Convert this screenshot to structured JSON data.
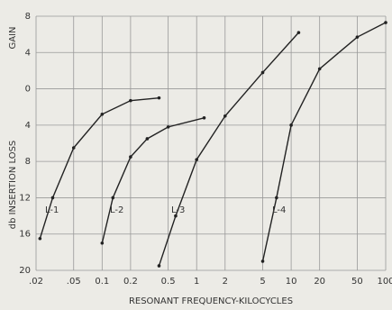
{
  "chart_data": {
    "type": "line",
    "y_title_top": "GAIN",
    "y_title_bottom": "db INSERTION LOSS",
    "x_title": "RESONANT FREQUENCY-KILOCYCLES",
    "log_x": true,
    "grid": true,
    "color": "#222222",
    "xlim": [
      0.02,
      100
    ],
    "ylim": [
      -20,
      8
    ],
    "xticks": [
      {
        "value": 0.02,
        "label": ".02"
      },
      {
        "value": 0.05,
        "label": ".05"
      },
      {
        "value": 0.1,
        "label": "0.1"
      },
      {
        "value": 0.2,
        "label": "0.2"
      },
      {
        "value": 0.5,
        "label": "0.5"
      },
      1,
      2,
      5,
      10,
      20,
      50,
      100
    ],
    "yticks": [
      8,
      4,
      0,
      {
        "value": -4,
        "label": "4"
      },
      {
        "value": -8,
        "label": "8"
      },
      {
        "value": -12,
        "label": "12"
      },
      {
        "value": -16,
        "label": "16"
      },
      {
        "value": -20,
        "label": "20"
      }
    ],
    "series": [
      {
        "name": "L-1",
        "x": [
          0.022,
          0.03,
          0.05,
          0.1,
          0.2,
          0.4
        ],
        "values": [
          -16.5,
          -12,
          -6.5,
          -2.8,
          -1.3,
          -1
        ]
      },
      {
        "name": "L-2",
        "x": [
          0.1,
          0.13,
          0.2,
          0.3,
          0.5,
          1.2
        ],
        "values": [
          -17,
          -12,
          -7.5,
          -5.5,
          -4.2,
          -3.2
        ]
      },
      {
        "name": "L-3",
        "x": [
          0.4,
          0.6,
          1,
          2,
          5,
          12
        ],
        "values": [
          -19.5,
          -14,
          -7.8,
          -3,
          1.8,
          6.2
        ]
      },
      {
        "name": "L-4",
        "x": [
          5,
          7,
          10,
          20,
          50,
          100
        ],
        "values": [
          -19,
          -12,
          -4,
          2.2,
          5.7,
          7.3
        ]
      }
    ]
  }
}
